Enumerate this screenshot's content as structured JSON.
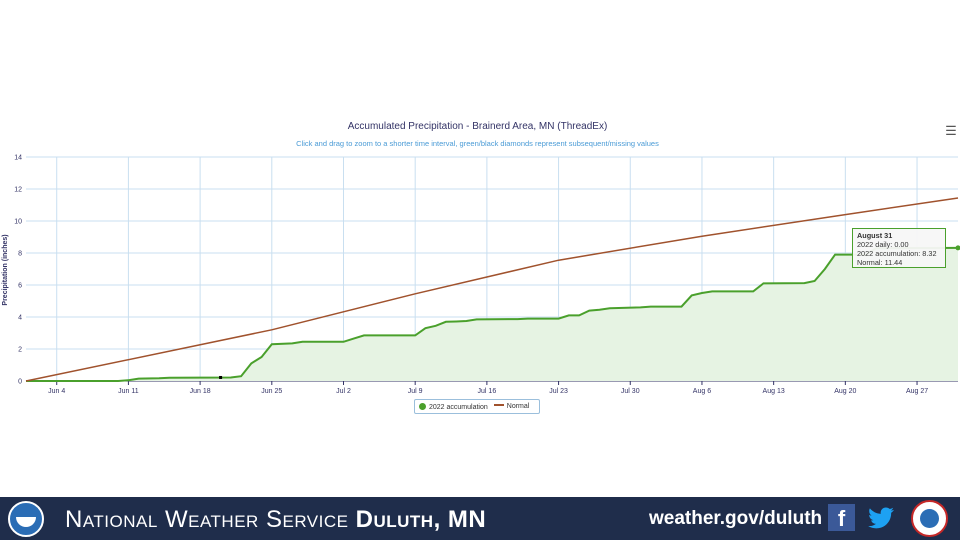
{
  "chart_data": {
    "type": "area",
    "title": "Accumulated Precipitation - Brainerd Area, MN (ThreadEx)",
    "subtitle": "Click and drag to zoom to a shorter time interval, green/black diamonds represent subsequent/missing values",
    "ylabel": "Precipitation (inches)",
    "ylim": [
      0,
      14
    ],
    "yticks": [
      0,
      2,
      4,
      6,
      8,
      10,
      12,
      14
    ],
    "xlim": [
      "2022-06-01",
      "2022-08-31"
    ],
    "xticks": [
      {
        "date": "2022-06-04",
        "label": "Jun 4"
      },
      {
        "date": "2022-06-11",
        "label": "Jun 11"
      },
      {
        "date": "2022-06-18",
        "label": "Jun 18"
      },
      {
        "date": "2022-06-25",
        "label": "Jun 25"
      },
      {
        "date": "2022-07-02",
        "label": "Jul 2"
      },
      {
        "date": "2022-07-09",
        "label": "Jul 9"
      },
      {
        "date": "2022-07-16",
        "label": "Jul 16"
      },
      {
        "date": "2022-07-23",
        "label": "Jul 23"
      },
      {
        "date": "2022-07-30",
        "label": "Jul 30"
      },
      {
        "date": "2022-08-06",
        "label": "Aug 6"
      },
      {
        "date": "2022-08-13",
        "label": "Aug 13"
      },
      {
        "date": "2022-08-20",
        "label": "Aug 20"
      },
      {
        "date": "2022-08-27",
        "label": "Aug 27"
      }
    ],
    "grid": true,
    "legend_position": "bottom",
    "series": [
      {
        "name": "2022 accumulation",
        "color": "#4aa02c",
        "points": [
          [
            "2022-06-01",
            0.0
          ],
          [
            "2022-06-10",
            0.0
          ],
          [
            "2022-06-11",
            0.05
          ],
          [
            "2022-06-12",
            0.15
          ],
          [
            "2022-06-14",
            0.17
          ],
          [
            "2022-06-15",
            0.2
          ],
          [
            "2022-06-21",
            0.22
          ],
          [
            "2022-06-22",
            0.3
          ],
          [
            "2022-06-23",
            1.1
          ],
          [
            "2022-06-24",
            1.5
          ],
          [
            "2022-06-25",
            2.3
          ],
          [
            "2022-06-27",
            2.35
          ],
          [
            "2022-06-28",
            2.45
          ],
          [
            "2022-07-02",
            2.45
          ],
          [
            "2022-07-03",
            2.65
          ],
          [
            "2022-07-04",
            2.85
          ],
          [
            "2022-07-09",
            2.85
          ],
          [
            "2022-07-10",
            3.3
          ],
          [
            "2022-07-11",
            3.45
          ],
          [
            "2022-07-12",
            3.7
          ],
          [
            "2022-07-13",
            3.72
          ],
          [
            "2022-07-14",
            3.75
          ],
          [
            "2022-07-15",
            3.85
          ],
          [
            "2022-07-19",
            3.87
          ],
          [
            "2022-07-20",
            3.9
          ],
          [
            "2022-07-23",
            3.9
          ],
          [
            "2022-07-24",
            4.1
          ],
          [
            "2022-07-25",
            4.1
          ],
          [
            "2022-07-26",
            4.4
          ],
          [
            "2022-07-27",
            4.45
          ],
          [
            "2022-07-28",
            4.55
          ],
          [
            "2022-07-31",
            4.6
          ],
          [
            "2022-08-01",
            4.65
          ],
          [
            "2022-08-04",
            4.65
          ],
          [
            "2022-08-05",
            5.35
          ],
          [
            "2022-08-06",
            5.5
          ],
          [
            "2022-08-07",
            5.6
          ],
          [
            "2022-08-11",
            5.6
          ],
          [
            "2022-08-12",
            6.1
          ],
          [
            "2022-08-16",
            6.12
          ],
          [
            "2022-08-17",
            6.25
          ],
          [
            "2022-08-18",
            7.0
          ],
          [
            "2022-08-19",
            7.9
          ],
          [
            "2022-08-22",
            7.9
          ],
          [
            "2022-08-23",
            8.3
          ],
          [
            "2022-08-31",
            8.32
          ]
        ]
      },
      {
        "name": "Normal",
        "color": "#a0522d",
        "points": [
          [
            "2022-06-01",
            0.0
          ],
          [
            "2022-06-25",
            3.2
          ],
          [
            "2022-07-09",
            5.45
          ],
          [
            "2022-07-23",
            7.55
          ],
          [
            "2022-08-06",
            9.05
          ],
          [
            "2022-08-20",
            10.4
          ],
          [
            "2022-08-31",
            11.44
          ]
        ]
      }
    ],
    "missing_marker": {
      "date": "2022-06-20",
      "value": 0.22
    }
  },
  "tooltip": {
    "date": "August 31",
    "daily": "2022 daily: 0.00",
    "accumulation": "2022 accumulation: 8.32",
    "normal": "Normal: 11.44"
  },
  "menu_icon": "hamburger-menu-icon",
  "footer": {
    "title_regular": "National Weather Service ",
    "title_bold": "Duluth, MN",
    "website": "weather.gov/duluth",
    "icons": [
      "noaa-logo",
      "facebook-icon",
      "twitter-icon",
      "nws-logo"
    ],
    "background": "#1f2d4b"
  }
}
